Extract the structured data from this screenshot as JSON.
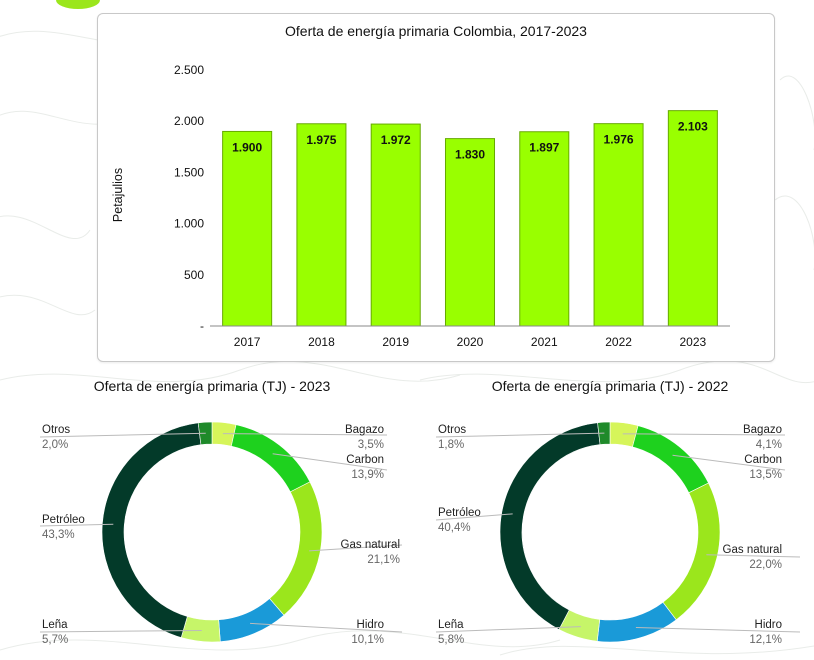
{
  "chart_data": [
    {
      "type": "bar",
      "title": "Oferta de energía primaria Colombia, 2017-2023",
      "ylabel": "Petajulios",
      "xlabel": "",
      "categories": [
        "2017",
        "2018",
        "2019",
        "2020",
        "2021",
        "2022",
        "2023"
      ],
      "values": [
        1900,
        1975,
        1972,
        1830,
        1897,
        1976,
        2103
      ],
      "value_labels": [
        "1.900",
        "1.975",
        "1.972",
        "1.830",
        "1.897",
        "1.976",
        "2.103"
      ],
      "ylim": [
        0,
        2500
      ],
      "yticks": [
        0,
        500,
        1000,
        1500,
        2000,
        2500
      ],
      "ytick_labels": [
        "-",
        "500",
        "1.000",
        "1.500",
        "2.000",
        "2.500"
      ],
      "grid": false,
      "colors": {
        "bar": "#99ff00",
        "bar_edge": "#66aa00"
      }
    },
    {
      "type": "pie",
      "variant": "donut",
      "title": "Oferta de energía primaria (TJ) - 2023",
      "slices": [
        {
          "name": "Bagazo",
          "label": "3,5%",
          "value": 3.5,
          "color": "#d6f55a"
        },
        {
          "name": "Carbon",
          "label": "13,9%",
          "value": 13.9,
          "color": "#1ed11e"
        },
        {
          "name": "Gas natural",
          "label": "21,1%",
          "value": 21.1,
          "color": "#9be61c"
        },
        {
          "name": "Hidro",
          "label": "10,1%",
          "value": 10.1,
          "color": "#1a9ad8"
        },
        {
          "name": "Leña",
          "label": "5,7%",
          "value": 5.7,
          "color": "#c6f569"
        },
        {
          "name": "Petróleo",
          "label": "43,3%",
          "value": 43.3,
          "color": "#033a29"
        },
        {
          "name": "Otros",
          "label": "2,0%",
          "value": 2.0,
          "color": "#1f8a2a"
        }
      ]
    },
    {
      "type": "pie",
      "variant": "donut",
      "title": "Oferta de energía primaria (TJ) - 2022",
      "slices": [
        {
          "name": "Bagazo",
          "label": "4,1%",
          "value": 4.1,
          "color": "#d6f55a"
        },
        {
          "name": "Carbon",
          "label": "13,5%",
          "value": 13.5,
          "color": "#1ed11e"
        },
        {
          "name": "Gas natural",
          "label": "22,0%",
          "value": 22.0,
          "color": "#9be61c"
        },
        {
          "name": "Hidro",
          "label": "12,1%",
          "value": 12.1,
          "color": "#1a9ad8"
        },
        {
          "name": "Leña",
          "label": "5,8%",
          "value": 5.8,
          "color": "#c6f569"
        },
        {
          "name": "Petróleo",
          "label": "40,4%",
          "value": 40.4,
          "color": "#033a29"
        },
        {
          "name": "Otros",
          "label": "1,8%",
          "value": 1.8,
          "color": "#1f8a2a"
        }
      ]
    }
  ]
}
